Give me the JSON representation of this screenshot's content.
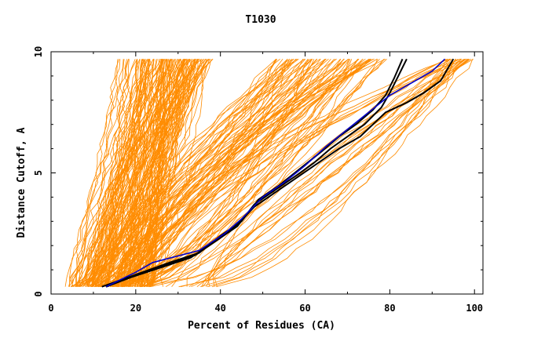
{
  "chart_data": {
    "type": "line",
    "title": "T1030",
    "xlabel": "Percent of Residues (CA)",
    "ylabel": "Distance Cutoff, A",
    "xlim": [
      0,
      102
    ],
    "ylim": [
      0,
      10
    ],
    "x_ticks": [
      "0",
      "20",
      "40",
      "60",
      "80",
      "100"
    ],
    "y_ticks": [
      "0",
      "5",
      "10"
    ],
    "x_tick_values": [
      0,
      20,
      40,
      60,
      80,
      100
    ],
    "y_tick_values": [
      0,
      5,
      10
    ],
    "grid": false,
    "legend": "none",
    "background_group": {
      "color": "#ff8c00",
      "count": 250,
      "cap_y": 9.7,
      "min_y": 0.3,
      "clusters": [
        {
          "count": 140,
          "x_at_min": [
            4,
            24
          ],
          "x_at_cap": [
            15,
            38
          ]
        },
        {
          "count": 80,
          "x_at_min": [
            8,
            22
          ],
          "x_at_cap": [
            53,
            79
          ]
        },
        {
          "count": 30,
          "x_at_min": [
            14,
            40
          ],
          "x_at_cap": [
            93,
            100
          ]
        }
      ]
    },
    "series": [
      {
        "color": "#000000",
        "width": 2,
        "x": [
          12,
          20,
          27,
          34,
          39,
          44,
          48,
          53,
          58,
          62,
          66,
          70,
          74,
          78,
          80,
          82,
          84
        ],
        "y": [
          0.3,
          0.8,
          1.2,
          1.6,
          2.2,
          2.8,
          3.7,
          4.3,
          4.9,
          5.4,
          6.0,
          6.5,
          7.0,
          7.7,
          8.3,
          9.0,
          9.7
        ]
      },
      {
        "color": "#000000",
        "width": 2,
        "x": [
          13,
          19,
          26,
          33,
          38,
          43,
          48,
          53,
          58,
          63,
          68,
          73,
          79,
          84,
          88,
          92,
          95
        ],
        "y": [
          0.3,
          0.7,
          1.1,
          1.5,
          2.1,
          2.7,
          3.6,
          4.2,
          4.8,
          5.4,
          6.0,
          6.5,
          7.5,
          7.9,
          8.3,
          8.8,
          9.7
        ]
      },
      {
        "color": "#000000",
        "width": 2,
        "x": [
          13,
          20,
          28,
          35,
          40,
          45,
          49,
          54,
          59,
          64,
          68,
          72,
          76,
          79,
          81,
          83
        ],
        "y": [
          0.3,
          0.8,
          1.3,
          1.7,
          2.4,
          3.0,
          3.9,
          4.5,
          5.2,
          5.9,
          6.5,
          7.0,
          7.6,
          8.2,
          8.9,
          9.7
        ]
      },
      {
        "color": "#0000cc",
        "width": 1.6,
        "x": [
          13,
          20,
          24,
          35,
          41,
          45,
          50,
          55,
          60,
          65,
          70,
          75,
          80,
          85,
          90,
          93
        ],
        "y": [
          0.3,
          0.9,
          1.3,
          1.8,
          2.5,
          3.1,
          4.0,
          4.6,
          5.3,
          6.1,
          6.8,
          7.5,
          8.2,
          8.7,
          9.2,
          9.7
        ]
      }
    ]
  }
}
